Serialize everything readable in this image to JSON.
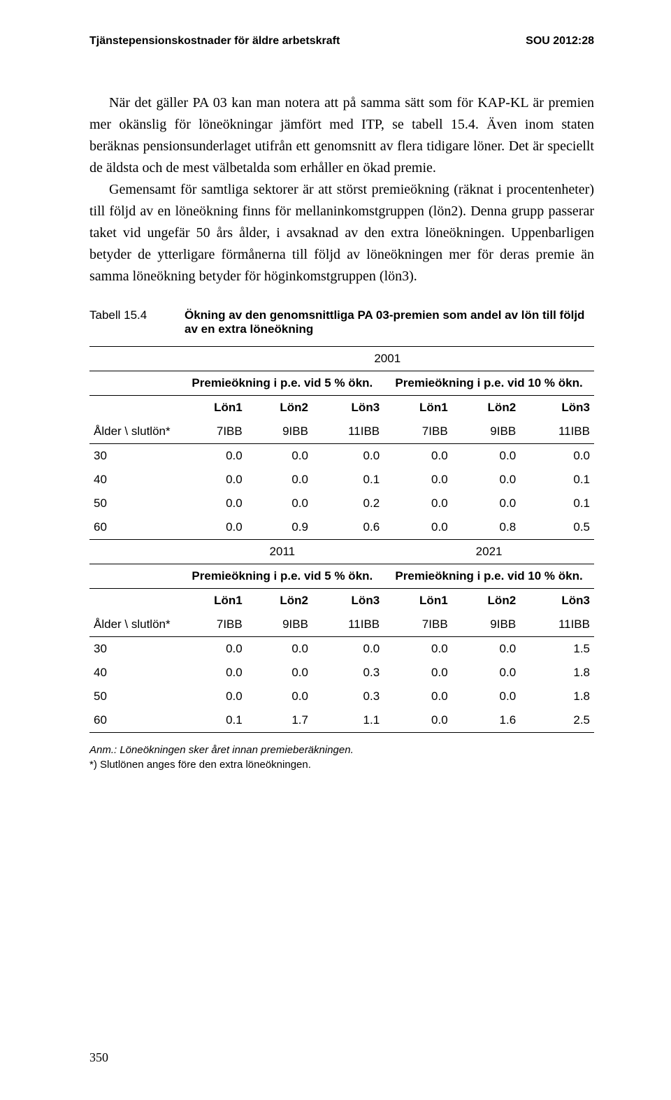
{
  "header": {
    "left": "Tjänstepensionskostnader för äldre arbetskraft",
    "right": "SOU 2012:28"
  },
  "para1": "När det gäller PA 03 kan man notera att på samma sätt som för KAP-KL är premien mer okänslig för löneökningar jämfört med ITP, se tabell 15.4. Även inom staten beräknas pensionsunderlaget utifrån ett genomsnitt av flera tidigare löner. Det är speciellt de äldsta och de mest välbetalda som erhåller en ökad premie.",
  "para2": "Gemensamt för samtliga sektorer är att störst premieökning (räknat i procentenheter) till följd av en löneökning finns för mellaninkomstgruppen (lön2). Denna grupp passerar taket vid ungefär 50 års ålder, i avsaknad av den extra löneökningen. Uppenbarligen betyder de ytterligare förmånerna till följd av löne­ökningen mer för deras premie än samma löneökning betyder för höginkomstgruppen (lön3).",
  "table": {
    "label": "Tabell 15.4",
    "title": "Ökning av den genomsnittliga PA 03-premien som andel av lön till följd av en extra löneökning",
    "years": [
      "2001",
      "2011",
      "2021"
    ],
    "span_left": "Premieökning i p.e. vid 5 % ökn.",
    "span_right": "Premieökning i p.e. vid 10 % ökn.",
    "cols": [
      "Lön1",
      "Lön2",
      "Lön3",
      "Lön1",
      "Lön2",
      "Lön3"
    ],
    "age_label": "Ålder \\ slutlön*",
    "ibb": [
      "7IBB",
      "9IBB",
      "11IBB",
      "7IBB",
      "9IBB",
      "11IBB"
    ],
    "block1_rows": [
      {
        "age": "30",
        "v": [
          "0.0",
          "0.0",
          "0.0",
          "0.0",
          "0.0",
          "0.0"
        ]
      },
      {
        "age": "40",
        "v": [
          "0.0",
          "0.0",
          "0.1",
          "0.0",
          "0.0",
          "0.1"
        ]
      },
      {
        "age": "50",
        "v": [
          "0.0",
          "0.0",
          "0.2",
          "0.0",
          "0.0",
          "0.1"
        ]
      },
      {
        "age": "60",
        "v": [
          "0.0",
          "0.9",
          "0.6",
          "0.0",
          "0.8",
          "0.5"
        ]
      }
    ],
    "block2_rows": [
      {
        "age": "30",
        "v": [
          "0.0",
          "0.0",
          "0.0",
          "0.0",
          "0.0",
          "1.5"
        ]
      },
      {
        "age": "40",
        "v": [
          "0.0",
          "0.0",
          "0.3",
          "0.0",
          "0.0",
          "1.8"
        ]
      },
      {
        "age": "50",
        "v": [
          "0.0",
          "0.0",
          "0.3",
          "0.0",
          "0.0",
          "1.8"
        ]
      },
      {
        "age": "60",
        "v": [
          "0.1",
          "1.7",
          "1.1",
          "0.0",
          "1.6",
          "2.5"
        ]
      }
    ]
  },
  "footnote1": "Anm.: Löneökningen sker året innan premieberäkningen.",
  "footnote2": "*) Slutlönen anges före den extra löneökningen.",
  "page": "350"
}
